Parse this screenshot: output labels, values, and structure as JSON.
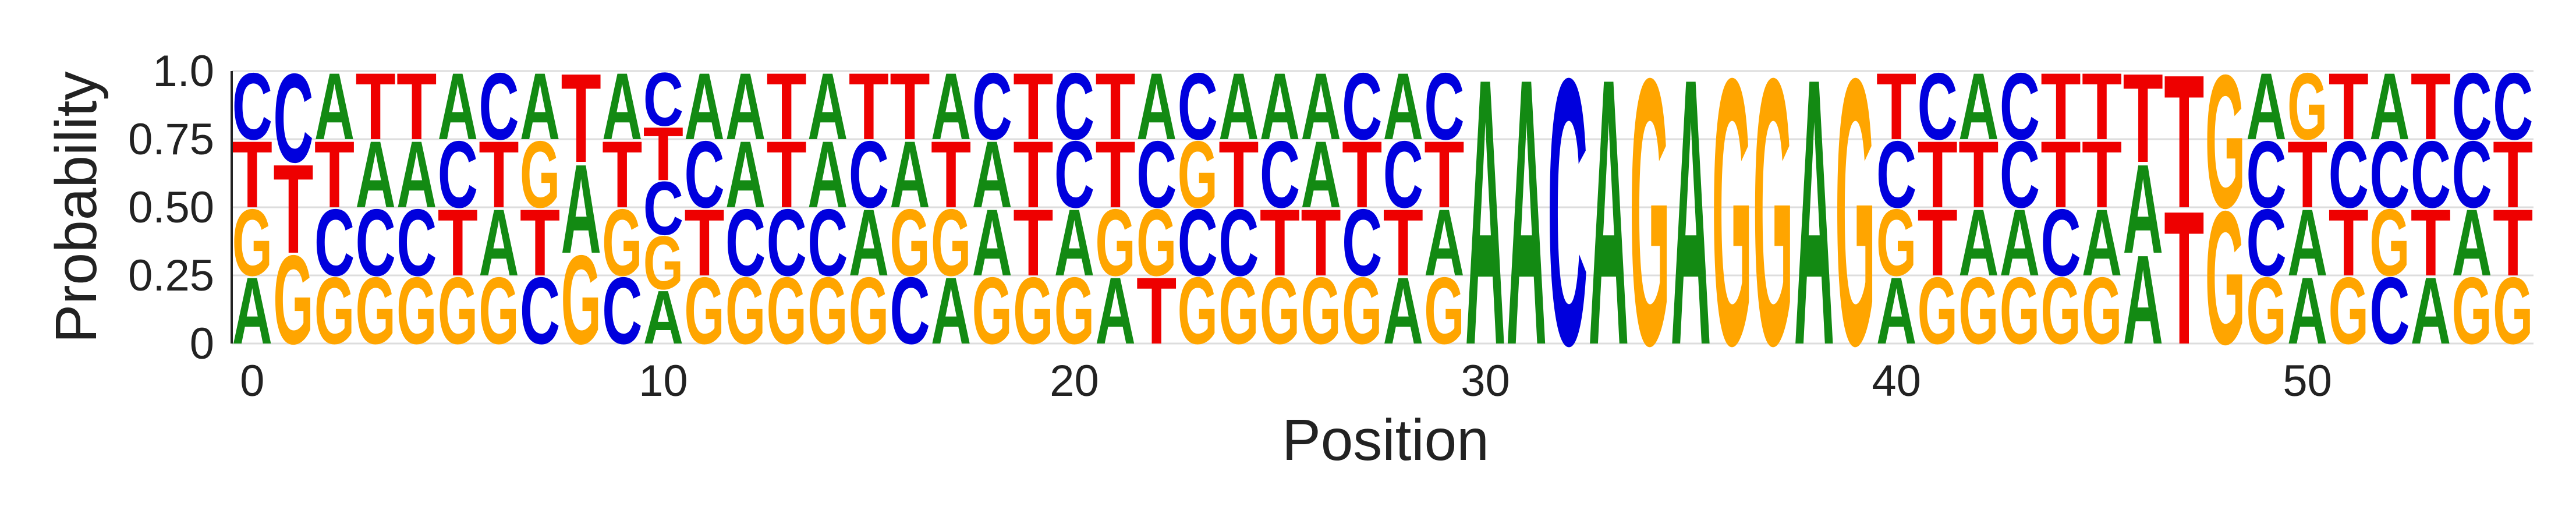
{
  "chart_data": {
    "type": "sequence-logo",
    "xlabel": "Position",
    "ylabel": "Probability",
    "ylim": [
      0,
      1
    ],
    "xlim": [
      -0.5,
      55.5
    ],
    "yticks": [
      {
        "value": 0,
        "label": "0"
      },
      {
        "value": 0.25,
        "label": "0.25"
      },
      {
        "value": 0.5,
        "label": "0.50"
      },
      {
        "value": 0.75,
        "label": "0.75"
      },
      {
        "value": 1,
        "label": "1.0"
      }
    ],
    "xticks": [
      {
        "value": 0,
        "label": "0"
      },
      {
        "value": 10,
        "label": "10"
      },
      {
        "value": 20,
        "label": "20"
      },
      {
        "value": 30,
        "label": "30"
      },
      {
        "value": 40,
        "label": "40"
      },
      {
        "value": 50,
        "label": "50"
      }
    ],
    "grid": "horizontal",
    "colors": {
      "A": "#138a13",
      "C": "#0000dd",
      "G": "#ffa500",
      "T": "#ee0000"
    },
    "positions": [
      "AGTC",
      "GTC",
      "GCTA",
      "GCAT",
      "GCAT",
      "GTCA",
      "GATC",
      "CTGA",
      "GAT",
      "CGTA",
      "AGCTC",
      "GTCA",
      "GCAA",
      "GCTT",
      "GCAA",
      "GACT",
      "CGAT",
      "AGTA",
      "GAAC",
      "GTTT",
      "GACC",
      "AGTT",
      "TGCA",
      "GCGC",
      "GCTA",
      "GTCA",
      "GTAA",
      "GCTC",
      "ATCA",
      "GATC",
      "A",
      "A",
      "C",
      "A",
      "G",
      "A",
      "G",
      "G",
      "A",
      "G",
      "AGCT",
      "GTTC",
      "GATA",
      "GACC",
      "GCTT",
      "GATT",
      "AAT",
      "TT",
      "GG",
      "GCCA",
      "AATG",
      "GTCT",
      "CGCA",
      "ATCT",
      "GACC",
      "GTTC"
    ]
  }
}
